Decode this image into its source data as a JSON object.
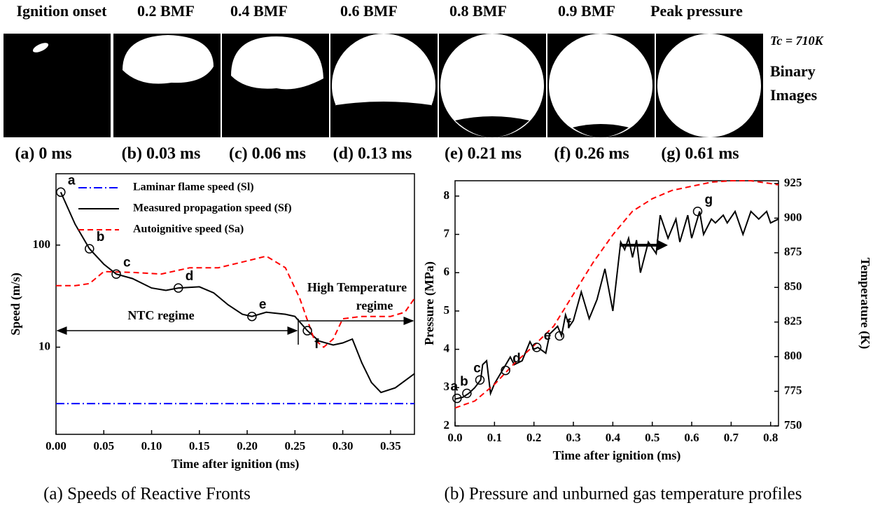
{
  "figure": {
    "headers": [
      "Ignition onset",
      "0.2 BMF",
      "0.4 BMF",
      "0.6 BMF",
      "0.8 BMF",
      "0.9 BMF",
      "Peak pressure"
    ],
    "times": [
      "(a) 0 ms",
      "(b) 0.03 ms",
      "(c) 0.06 ms",
      "(d) 0.13 ms",
      "(e) 0.21 ms",
      "(f) 0.26 ms",
      "(g) 0.61 ms"
    ],
    "side_label": {
      "temperature": "Tc = 710K",
      "line1": "Binary",
      "line2": "Images"
    },
    "captions": [
      "(a) Speeds of Reactive Fronts",
      "(b) Pressure and unburned gas temperature profiles"
    ]
  },
  "chart_data": [
    {
      "type": "line",
      "ylabel": "Speed (m/s)",
      "xlabel": "Time after ignition (ms)",
      "log_y": true,
      "xlim": [
        0,
        0.375
      ],
      "ylim": [
        1.4,
        500
      ],
      "xticks": [
        {
          "value": 0,
          "label": "0.00"
        },
        {
          "value": 0.05,
          "label": "0.05"
        },
        {
          "value": 0.1,
          "label": "0.10"
        },
        {
          "value": 0.15,
          "label": "0.15"
        },
        {
          "value": 0.2,
          "label": "0.20"
        },
        {
          "value": 0.25,
          "label": "0.25"
        },
        {
          "value": 0.3,
          "label": "0.30"
        },
        {
          "value": 0.35,
          "label": "0.35"
        }
      ],
      "yticks": [
        10,
        100
      ],
      "series": [
        {
          "name": "Laminar flame speed (Sl)",
          "color": "#0000ff",
          "dash": "dashdot",
          "x": [
            0,
            0.375
          ],
          "values": [
            2.8,
            2.8
          ]
        },
        {
          "name": "Measured propagation speed (Sf)",
          "color": "#000000",
          "x": [
            0.005,
            0.02,
            0.035,
            0.05,
            0.063,
            0.08,
            0.1,
            0.115,
            0.128,
            0.15,
            0.165,
            0.18,
            0.195,
            0.205,
            0.22,
            0.24,
            0.25,
            0.263,
            0.275,
            0.29,
            0.3,
            0.31,
            0.32,
            0.33,
            0.34,
            0.355,
            0.375
          ],
          "values": [
            330,
            160,
            92,
            65,
            52,
            47,
            38,
            36,
            38,
            39,
            34,
            26,
            21,
            20,
            22,
            21,
            20,
            14.5,
            11.5,
            10.5,
            11,
            12,
            7,
            4.5,
            3.6,
            4,
            5.5
          ]
        },
        {
          "name": "Autoignitive speed (Sa)",
          "color": "#ff0000",
          "dash": "dash",
          "x": [
            0,
            0.02,
            0.035,
            0.05,
            0.08,
            0.11,
            0.14,
            0.17,
            0.2,
            0.22,
            0.24,
            0.255,
            0.27,
            0.28,
            0.29,
            0.3,
            0.32,
            0.35,
            0.365,
            0.375
          ],
          "values": [
            40,
            40,
            42,
            55,
            54,
            52,
            60,
            60,
            70,
            78,
            60,
            30,
            12,
            10,
            12,
            19,
            20,
            20,
            22,
            30
          ]
        }
      ],
      "points": [
        {
          "label": "a",
          "x": 0.005,
          "y": 330
        },
        {
          "label": "b",
          "x": 0.035,
          "y": 92
        },
        {
          "label": "c",
          "x": 0.063,
          "y": 52
        },
        {
          "label": "d",
          "x": 0.128,
          "y": 38
        },
        {
          "label": "e",
          "x": 0.205,
          "y": 20
        },
        {
          "label": "f",
          "x": 0.263,
          "y": 14.5
        }
      ],
      "annotations": [
        "NTC regime",
        "High Temperature",
        "regime"
      ]
    },
    {
      "type": "line",
      "ylabel": "Pressure (MPa)",
      "y2label": "Temperature (K)",
      "xlabel": "Time after ignition (ms)",
      "xlim": [
        0,
        0.82
      ],
      "ylim": [
        2,
        8.4
      ],
      "y2lim": [
        750,
        927
      ],
      "xticks": [
        {
          "value": 0,
          "label": "0.0"
        },
        0.1,
        0.2,
        0.3,
        0.4,
        0.5,
        0.6,
        0.7,
        0.8
      ],
      "yticks": [
        2,
        3,
        4,
        5,
        6,
        7,
        8
      ],
      "y2ticks": [
        750,
        775,
        800,
        825,
        850,
        875,
        900,
        925
      ],
      "series": [
        {
          "color": "#000000",
          "x": [
            0,
            0.02,
            0.035,
            0.05,
            0.065,
            0.07,
            0.08,
            0.09,
            0.1,
            0.12,
            0.14,
            0.15,
            0.17,
            0.19,
            0.2,
            0.21,
            0.23,
            0.24,
            0.26,
            0.27,
            0.28,
            0.29,
            0.3,
            0.32,
            0.34,
            0.36,
            0.38,
            0.4,
            0.42,
            0.43,
            0.44,
            0.45,
            0.46,
            0.47,
            0.49,
            0.51,
            0.52,
            0.54,
            0.56,
            0.57,
            0.59,
            0.6,
            0.62,
            0.63,
            0.65,
            0.66,
            0.68,
            0.69,
            0.71,
            0.73,
            0.75,
            0.77,
            0.79,
            0.8,
            0.82
          ],
          "values": [
            2.7,
            2.75,
            2.85,
            3.0,
            3.2,
            3.6,
            3.7,
            2.85,
            3.1,
            3.45,
            3.8,
            3.6,
            3.7,
            4.2,
            4.0,
            4.05,
            3.9,
            4.4,
            4.6,
            4.35,
            4.9,
            4.6,
            4.75,
            5.5,
            4.8,
            5.3,
            6.1,
            5.0,
            6.8,
            6.6,
            6.9,
            6.4,
            6.85,
            6.0,
            6.8,
            6.5,
            7.5,
            6.9,
            7.4,
            6.8,
            7.5,
            6.9,
            7.6,
            7.0,
            7.4,
            7.3,
            7.5,
            7.3,
            7.6,
            7.0,
            7.6,
            7.4,
            7.6,
            7.3,
            7.4
          ]
        },
        {
          "color": "#ff0000",
          "dash": "dash",
          "axis": "y2",
          "x": [
            0,
            0.05,
            0.1,
            0.15,
            0.2,
            0.25,
            0.3,
            0.35,
            0.4,
            0.45,
            0.5,
            0.55,
            0.6,
            0.65,
            0.7,
            0.75,
            0.8,
            0.82
          ],
          "values": [
            763,
            768,
            780,
            795,
            808,
            822,
            845,
            868,
            888,
            905,
            914,
            920,
            923,
            926,
            927,
            927,
            925,
            924
          ]
        }
      ],
      "points": [
        {
          "label": "a",
          "x": 0.005,
          "y": 2.72
        },
        {
          "label": "b",
          "x": 0.03,
          "y": 2.85
        },
        {
          "label": "c",
          "x": 0.063,
          "y": 3.2
        },
        {
          "label": "d",
          "x": 0.128,
          "y": 3.45
        },
        {
          "label": "e",
          "x": 0.207,
          "y": 4.05
        },
        {
          "label": "f",
          "x": 0.265,
          "y": 4.35
        },
        {
          "label": "g",
          "x": 0.615,
          "y": 7.6
        }
      ]
    }
  ]
}
